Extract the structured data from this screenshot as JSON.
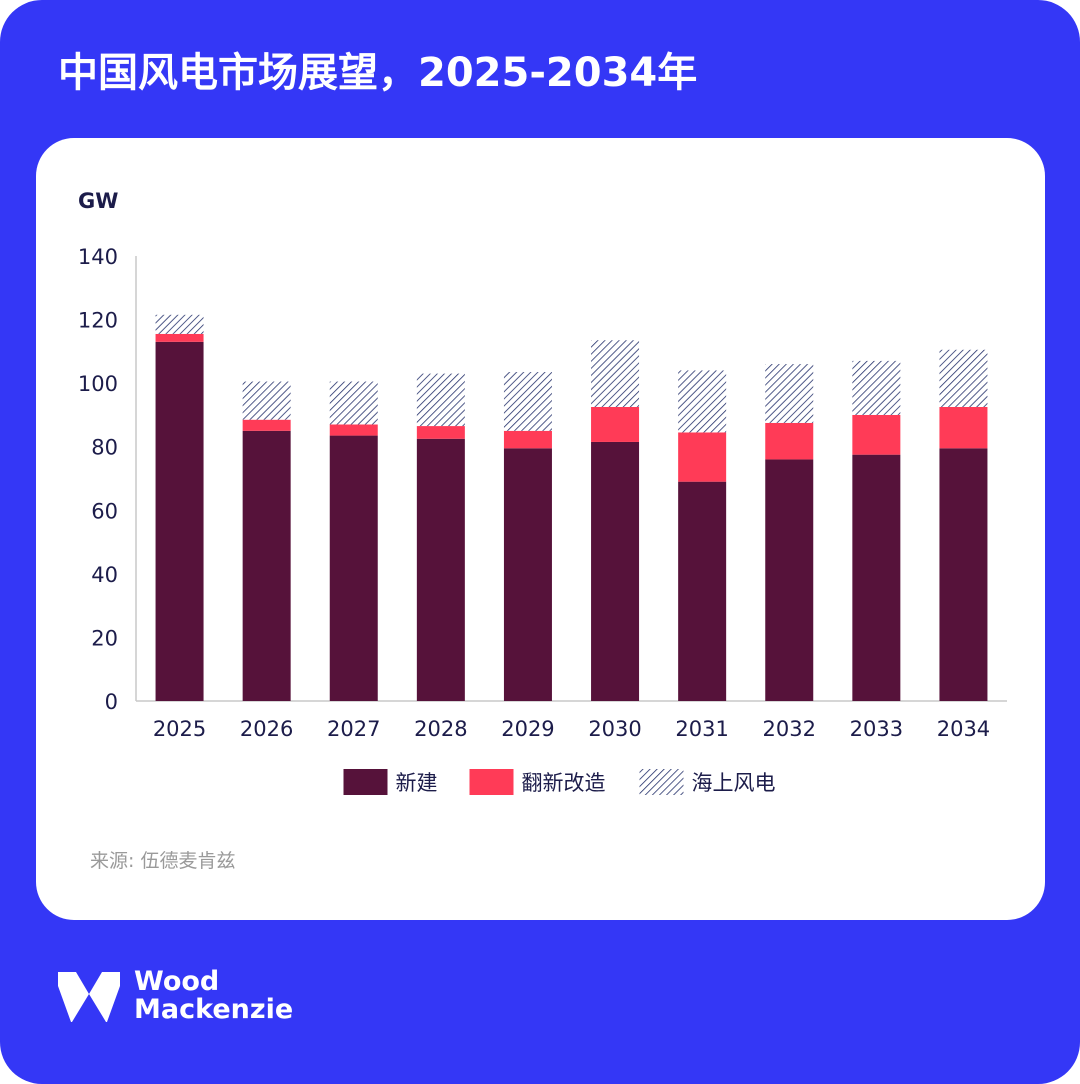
{
  "title": "中国风电市场展望，2025-2034年",
  "source": "来源: 伍德麦肯兹",
  "brand": {
    "line1": "Wood",
    "line2": "Mackenzie"
  },
  "colors": {
    "background": "#3437f6",
    "card": "#ffffff",
    "new_build": "#56123a",
    "repowering": "#ff3b57",
    "offshore_hatch": "#24306b",
    "axis_text": "#1c1c4a"
  },
  "chart_data": {
    "type": "bar",
    "stacked": true,
    "unit_label": "GW",
    "categories": [
      "2025",
      "2026",
      "2027",
      "2028",
      "2029",
      "2030",
      "2031",
      "2032",
      "2033",
      "2034"
    ],
    "series": [
      {
        "name": "新建",
        "pattern": "solid",
        "values": [
          113,
          85,
          83.5,
          82.5,
          79.5,
          81.5,
          69,
          76,
          77.5,
          79.5
        ]
      },
      {
        "name": "翻新改造",
        "pattern": "solid",
        "values": [
          2.5,
          3.5,
          3.5,
          4,
          5.5,
          11,
          15.5,
          11.5,
          12.5,
          13
        ]
      },
      {
        "name": "海上风电",
        "pattern": "hatch",
        "values": [
          6,
          12,
          13.5,
          16.5,
          18.5,
          21,
          19.5,
          18.5,
          17,
          18
        ]
      }
    ],
    "ylim": [
      0,
      140
    ],
    "yticks": [
      0,
      20,
      40,
      60,
      80,
      100,
      120,
      140
    ],
    "grid": false,
    "legend_position": "bottom-center"
  }
}
